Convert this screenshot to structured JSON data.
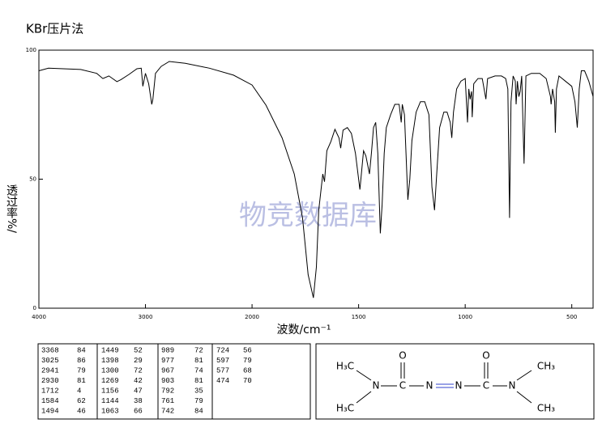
{
  "chart_data": {
    "type": "line",
    "title": "KBr压片法",
    "xlabel": "波数/cm⁻¹",
    "ylabel": "透过率%/",
    "annotations": [
      "物竞数据库"
    ],
    "x": [
      4000,
      3910,
      3608,
      3457,
      3400,
      3343,
      3268,
      3230,
      3155,
      3080,
      3040,
      3025,
      3000,
      2970,
      2941,
      2930,
      2906,
      2853,
      2777,
      2626,
      2400,
      2174,
      2000,
      1935,
      1859,
      1802,
      1763,
      1737,
      1712,
      1698,
      1687,
      1668,
      1660,
      1649,
      1630,
      1611,
      1592,
      1584,
      1573,
      1553,
      1534,
      1515,
      1494,
      1477,
      1466,
      1449,
      1440,
      1430,
      1420,
      1410,
      1398,
      1390,
      1380,
      1370,
      1350,
      1330,
      1310,
      1300,
      1295,
      1285,
      1269,
      1260,
      1250,
      1230,
      1210,
      1190,
      1170,
      1156,
      1144,
      1135,
      1120,
      1100,
      1085,
      1070,
      1063,
      1055,
      1040,
      1020,
      1000,
      989,
      983,
      977,
      970,
      967,
      960,
      940,
      920,
      903,
      895,
      860,
      830,
      810,
      800,
      792,
      785,
      775,
      765,
      761,
      755,
      748,
      742,
      735,
      724,
      715,
      690,
      650,
      620,
      600,
      597,
      590,
      580,
      577,
      572,
      560,
      530,
      500,
      485,
      474,
      465,
      455,
      440,
      420,
      400
    ],
    "series": [
      {
        "color": "#000000",
        "values": [
          92,
          93,
          92.5,
          91,
          89,
          90,
          87.8,
          88.6,
          90.6,
          92.8,
          93,
          86,
          91,
          87,
          79,
          81,
          91,
          93.7,
          95.6,
          94.9,
          93,
          90.3,
          86.5,
          78.7,
          66,
          52,
          35,
          13,
          4,
          16,
          38,
          52,
          49,
          61,
          64.6,
          69.3,
          66,
          62,
          69,
          70,
          67.7,
          60,
          46,
          61,
          59,
          52,
          60,
          70,
          72,
          60,
          29,
          40,
          60,
          70,
          75,
          79,
          79,
          72,
          79,
          75,
          42,
          50,
          65,
          76,
          80,
          80,
          75,
          47,
          38,
          50,
          70,
          76,
          76,
          72,
          66,
          76,
          85,
          88,
          89,
          72,
          85,
          81,
          84,
          74,
          87,
          89,
          89,
          81,
          89,
          90,
          90,
          89,
          85,
          35,
          80,
          90,
          88,
          79,
          88,
          82,
          84,
          90,
          56,
          90,
          91,
          91,
          89,
          82,
          79,
          85,
          80,
          68,
          85,
          90,
          88,
          86,
          80,
          70,
          85,
          92,
          92,
          88,
          82
        ]
      }
    ],
    "xlim": [
      4000,
      400
    ],
    "xticks": [
      4000,
      3000,
      2000,
      1500,
      1000,
      500
    ],
    "ylim": [
      0,
      100
    ],
    "yticks": [
      0,
      50,
      100
    ]
  },
  "peak_table": {
    "columns": [
      [
        [
          "3368",
          "84"
        ],
        [
          "3025",
          "86"
        ],
        [
          "2941",
          "79"
        ],
        [
          "2930",
          "81"
        ],
        [
          "1712",
          "4"
        ],
        [
          "1584",
          "62"
        ],
        [
          "1494",
          "46"
        ]
      ],
      [
        [
          "1449",
          "52"
        ],
        [
          "1398",
          "29"
        ],
        [
          "1300",
          "72"
        ],
        [
          "1269",
          "42"
        ],
        [
          "1156",
          "47"
        ],
        [
          "1144",
          "38"
        ],
        [
          "1063",
          "66"
        ]
      ],
      [
        [
          "989",
          "72"
        ],
        [
          "977",
          "81"
        ],
        [
          "967",
          "74"
        ],
        [
          "903",
          "81"
        ],
        [
          "792",
          "35"
        ],
        [
          "761",
          "79"
        ],
        [
          "742",
          "84"
        ]
      ],
      [
        [
          "724",
          "56"
        ],
        [
          "597",
          "79"
        ],
        [
          "577",
          "68"
        ],
        [
          "474",
          "70"
        ]
      ]
    ]
  },
  "structure": {
    "atoms": [
      "H₃C",
      "N",
      "C",
      "O",
      "N",
      "N",
      "C",
      "O",
      "N",
      "CH₃",
      "H₃C",
      "CH₃"
    ]
  }
}
